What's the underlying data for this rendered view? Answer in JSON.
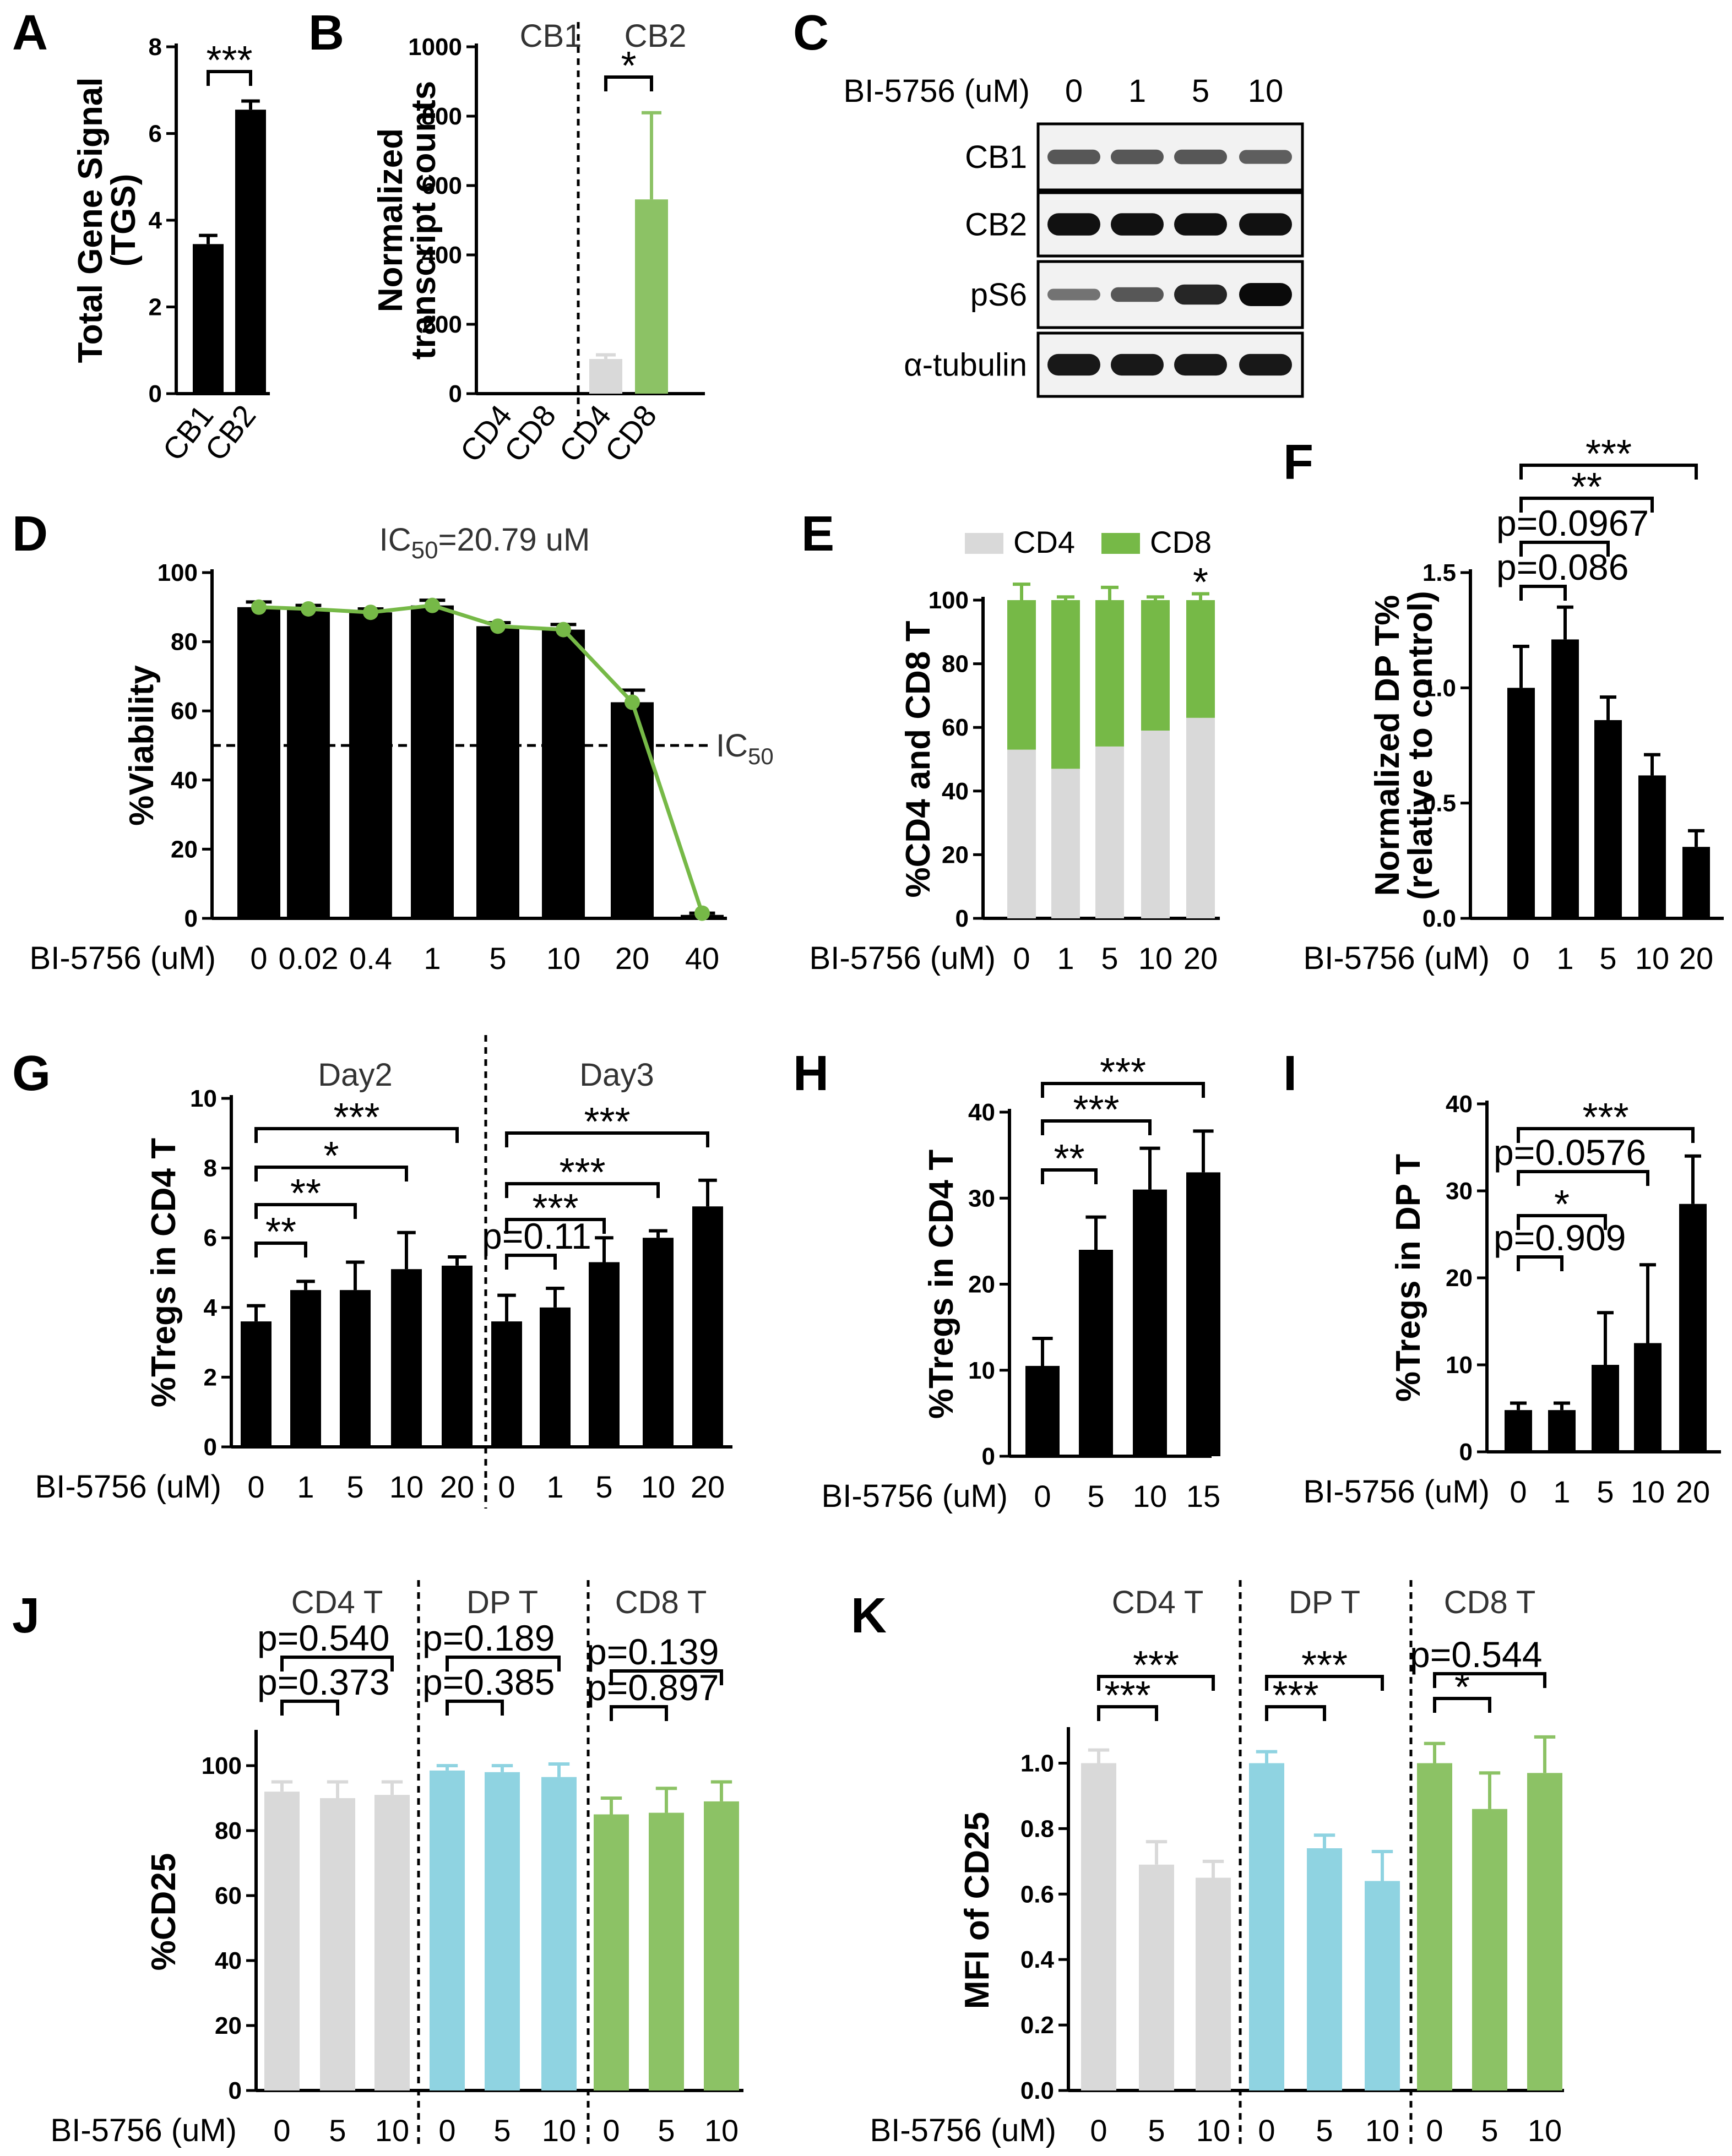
{
  "chart_data": [
    {
      "id": "A",
      "type": "bar",
      "title": "",
      "ylabel": "Total Gene Signal (TGS)",
      "ylabel_lines": [
        "Total Gene Signal",
        "(TGS)"
      ],
      "ylim": [
        0,
        8
      ],
      "yticks": [
        "0",
        "2",
        "4",
        "6",
        "8"
      ],
      "categories": [
        "CB1",
        "CB2"
      ],
      "values": [
        3.45,
        6.55
      ],
      "errors": [
        0.2,
        0.2
      ],
      "colors": [
        "#000000",
        "#000000"
      ],
      "significance": [
        {
          "from": 0,
          "to": 1,
          "label": "***"
        }
      ]
    },
    {
      "id": "B",
      "type": "bar",
      "ylabel": "Normalized transcript counts",
      "ylabel_lines": [
        "Normalized",
        "transcript counts"
      ],
      "ylim": [
        0,
        1000
      ],
      "yticks": [
        "0",
        "200",
        "400",
        "600",
        "800",
        "1000"
      ],
      "groups": [
        "CB1",
        "CB2"
      ],
      "categories": [
        "CD4",
        "CD8",
        "CD4",
        "CD8"
      ],
      "values": [
        0,
        0,
        100,
        560
      ],
      "errors": [
        0,
        0,
        12,
        250
      ],
      "colors": [
        "#000000",
        "#000000",
        "#d9d9d9",
        "#8cc265"
      ],
      "significance": [
        {
          "from": 2,
          "to": 3,
          "label": "*"
        }
      ]
    },
    {
      "id": "C",
      "type": "western_blot",
      "xprefix": "BI-5756 (uM)",
      "doses": [
        "0",
        "1",
        "5",
        "10"
      ],
      "bands": [
        {
          "label": "CB1",
          "intensity": [
            0.45,
            0.45,
            0.45,
            0.4
          ]
        },
        {
          "label": "CB2",
          "intensity": [
            0.95,
            0.95,
            0.95,
            0.95
          ]
        },
        {
          "label": "pS6",
          "intensity": [
            0.25,
            0.45,
            0.8,
            1.0
          ]
        },
        {
          "label": "α-tubulin",
          "intensity": [
            0.9,
            0.9,
            0.9,
            0.9
          ]
        }
      ]
    },
    {
      "id": "D",
      "type": "bar",
      "title": "IC50=20.79 uM",
      "title_main": "IC",
      "title_sub": "50",
      "title_rest": "=20.79 uM",
      "ylabel": "%Viability",
      "xprefix": "BI-5756 (uM)",
      "ylim": [
        0,
        100
      ],
      "yticks": [
        "0",
        "20",
        "40",
        "60",
        "80",
        "100"
      ],
      "categories": [
        "0",
        "0.02",
        "0.4",
        "1",
        "5",
        "10",
        "20",
        "40"
      ],
      "values": [
        90,
        89.5,
        88.5,
        90.5,
        84.5,
        83.5,
        62.5,
        1
      ],
      "errors": [
        1.5,
        1,
        1,
        1.5,
        1,
        1.5,
        3.5,
        0.5
      ],
      "colors": [
        "#000000"
      ],
      "line_values": [
        90,
        89.5,
        88.5,
        90.5,
        84.5,
        83.5,
        62.5,
        1.5
      ],
      "line_color": "#76b947",
      "ic50_line": 50,
      "ic50_label_main": "IC",
      "ic50_label_sub": "50"
    },
    {
      "id": "E",
      "type": "stacked_bar",
      "ylabel": "%CD4 and CD8 T",
      "xprefix": "BI-5756 (uM)",
      "ylim": [
        0,
        100
      ],
      "yticks": [
        "0",
        "20",
        "40",
        "60",
        "80",
        "100"
      ],
      "categories": [
        "0",
        "1",
        "5",
        "10",
        "20"
      ],
      "series": [
        {
          "name": "CD4",
          "values": [
            53,
            47,
            54,
            59,
            63
          ],
          "errors": [
            5,
            1,
            4,
            1,
            2
          ],
          "color": "#d9d9d9"
        },
        {
          "name": "CD8",
          "values": [
            47,
            53,
            46,
            41,
            37
          ],
          "errors": [
            5,
            1,
            4,
            1,
            2
          ],
          "color": "#76b947"
        }
      ],
      "annotations": [
        {
          "index": 4,
          "label": "*"
        }
      ]
    },
    {
      "id": "F",
      "type": "bar",
      "ylabel": "Normalized DP T% (relative to control)",
      "ylabel_lines": [
        "Normalized DP T%",
        "(relative to control)"
      ],
      "xprefix": "BI-5756 (uM)",
      "ylim": [
        0,
        1.5
      ],
      "yticks": [
        "0.0",
        "0.5",
        "1.0",
        "1.5"
      ],
      "categories": [
        "0",
        "1",
        "5",
        "10",
        "20"
      ],
      "values": [
        1.0,
        1.21,
        0.86,
        0.62,
        0.31
      ],
      "errors": [
        0.18,
        0.14,
        0.1,
        0.09,
        0.07
      ],
      "colors": [
        "#000000"
      ],
      "significance": [
        {
          "from": 0,
          "to": 1,
          "label": "p=0.086"
        },
        {
          "from": 0,
          "to": 2,
          "label": "p=0.0967"
        },
        {
          "from": 0,
          "to": 3,
          "label": "**"
        },
        {
          "from": 0,
          "to": 4,
          "label": "***"
        }
      ]
    },
    {
      "id": "G",
      "type": "bar",
      "ylabel": "%Tregs in CD4 T",
      "xprefix": "BI-5756 (uM)",
      "ylim": [
        0,
        10
      ],
      "yticks": [
        "0",
        "2",
        "4",
        "6",
        "8",
        "10"
      ],
      "groups": [
        "Day2",
        "Day3"
      ],
      "categories": [
        "0",
        "1",
        "5",
        "10",
        "20",
        "0",
        "1",
        "5",
        "10",
        "20"
      ],
      "values": [
        3.6,
        4.5,
        4.5,
        5.1,
        5.2,
        3.6,
        4.0,
        5.3,
        6.0,
        6.9
      ],
      "errors": [
        0.45,
        0.25,
        0.8,
        1.05,
        0.25,
        0.75,
        0.55,
        0.7,
        0.2,
        0.75
      ],
      "colors": [
        "#000000"
      ],
      "significance": [
        {
          "from": 0,
          "to": 1,
          "label": "**"
        },
        {
          "from": 0,
          "to": 2,
          "label": "**"
        },
        {
          "from": 0,
          "to": 3,
          "label": "*"
        },
        {
          "from": 0,
          "to": 4,
          "label": "***"
        },
        {
          "from": 5,
          "to": 6,
          "label": "p=0.11"
        },
        {
          "from": 5,
          "to": 7,
          "label": "***"
        },
        {
          "from": 5,
          "to": 8,
          "label": "***"
        },
        {
          "from": 5,
          "to": 9,
          "label": "***"
        }
      ]
    },
    {
      "id": "H",
      "type": "bar",
      "ylabel": "%Tregs in CD4 T",
      "xprefix": "BI-5756 (uM)",
      "ylim": [
        0,
        40
      ],
      "yticks": [
        "0",
        "10",
        "20",
        "30",
        "40"
      ],
      "categories": [
        "0",
        "5",
        "10",
        "15"
      ],
      "values": [
        10.5,
        24,
        31,
        33
      ],
      "errors": [
        3.2,
        3.8,
        4.8,
        4.8
      ],
      "colors": [
        "#000000"
      ],
      "significance": [
        {
          "from": 0,
          "to": 1,
          "label": "**"
        },
        {
          "from": 0,
          "to": 2,
          "label": "***"
        },
        {
          "from": 0,
          "to": 3,
          "label": "***"
        }
      ]
    },
    {
      "id": "I",
      "type": "bar",
      "ylabel": "%Tregs in DP T",
      "xprefix": "BI-5756 (uM)",
      "ylim": [
        0,
        40
      ],
      "yticks": [
        "0",
        "10",
        "20",
        "30",
        "40"
      ],
      "categories": [
        "0",
        "1",
        "5",
        "10",
        "20"
      ],
      "values": [
        4.8,
        4.8,
        10,
        12.5,
        28.5
      ],
      "errors": [
        0.8,
        0.8,
        6,
        9,
        5.5
      ],
      "colors": [
        "#000000"
      ],
      "significance": [
        {
          "from": 0,
          "to": 1,
          "label": "p=0.909"
        },
        {
          "from": 0,
          "to": 2,
          "label": "*"
        },
        {
          "from": 0,
          "to": 3,
          "label": "p=0.0576"
        },
        {
          "from": 0,
          "to": 4,
          "label": "***"
        }
      ]
    },
    {
      "id": "J",
      "type": "bar",
      "ylabel": "%CD25",
      "xprefix": "BI-5756 (uM)",
      "ylim": [
        0,
        110
      ],
      "yticks": [
        "0",
        "20",
        "40",
        "60",
        "80",
        "100"
      ],
      "groups": [
        "CD4 T",
        "DP T",
        "CD8 T"
      ],
      "categories": [
        "0",
        "5",
        "10",
        "0",
        "5",
        "10",
        "0",
        "5",
        "10"
      ],
      "values": [
        92,
        90,
        91,
        98.5,
        98,
        96.5,
        85,
        85.5,
        89
      ],
      "errors": [
        3,
        5,
        4,
        1.5,
        2,
        4,
        5,
        7.5,
        6
      ],
      "colors": [
        "#d9d9d9",
        "#d9d9d9",
        "#d9d9d9",
        "#8fd3e1",
        "#8fd3e1",
        "#8fd3e1",
        "#8cc265",
        "#8cc265",
        "#8cc265"
      ],
      "significance": [
        {
          "from": 0,
          "to": 1,
          "label": "p=0.373"
        },
        {
          "from": 0,
          "to": 2,
          "label": "p=0.540"
        },
        {
          "from": 3,
          "to": 4,
          "label": "p=0.385"
        },
        {
          "from": 3,
          "to": 5,
          "label": "p=0.189"
        },
        {
          "from": 6,
          "to": 7,
          "label": "p=0.897"
        },
        {
          "from": 6,
          "to": 8,
          "label": "p=0.139"
        }
      ]
    },
    {
      "id": "K",
      "type": "bar",
      "ylabel": "MFI of CD25",
      "xprefix": "BI-5756 (uM)",
      "ylim": [
        0,
        1.1
      ],
      "yticks": [
        "0.0",
        "0.2",
        "0.4",
        "0.6",
        "0.8",
        "1.0"
      ],
      "groups": [
        "CD4 T",
        "DP T",
        "CD8 T"
      ],
      "categories": [
        "0",
        "5",
        "10",
        "0",
        "5",
        "10",
        "0",
        "5",
        "10"
      ],
      "values": [
        1.0,
        0.69,
        0.65,
        1.0,
        0.74,
        0.64,
        1.0,
        0.86,
        0.97
      ],
      "errors": [
        0.04,
        0.07,
        0.05,
        0.035,
        0.04,
        0.09,
        0.06,
        0.11,
        0.11
      ],
      "colors": [
        "#d9d9d9",
        "#d9d9d9",
        "#d9d9d9",
        "#8fd3e1",
        "#8fd3e1",
        "#8fd3e1",
        "#8cc265",
        "#8cc265",
        "#8cc265"
      ],
      "significance": [
        {
          "from": 0,
          "to": 1,
          "label": "***"
        },
        {
          "from": 0,
          "to": 2,
          "label": "***"
        },
        {
          "from": 3,
          "to": 4,
          "label": "***"
        },
        {
          "from": 3,
          "to": 5,
          "label": "***"
        },
        {
          "from": 6,
          "to": 7,
          "label": "*"
        },
        {
          "from": 6,
          "to": 8,
          "label": "p=0.544"
        }
      ]
    }
  ]
}
